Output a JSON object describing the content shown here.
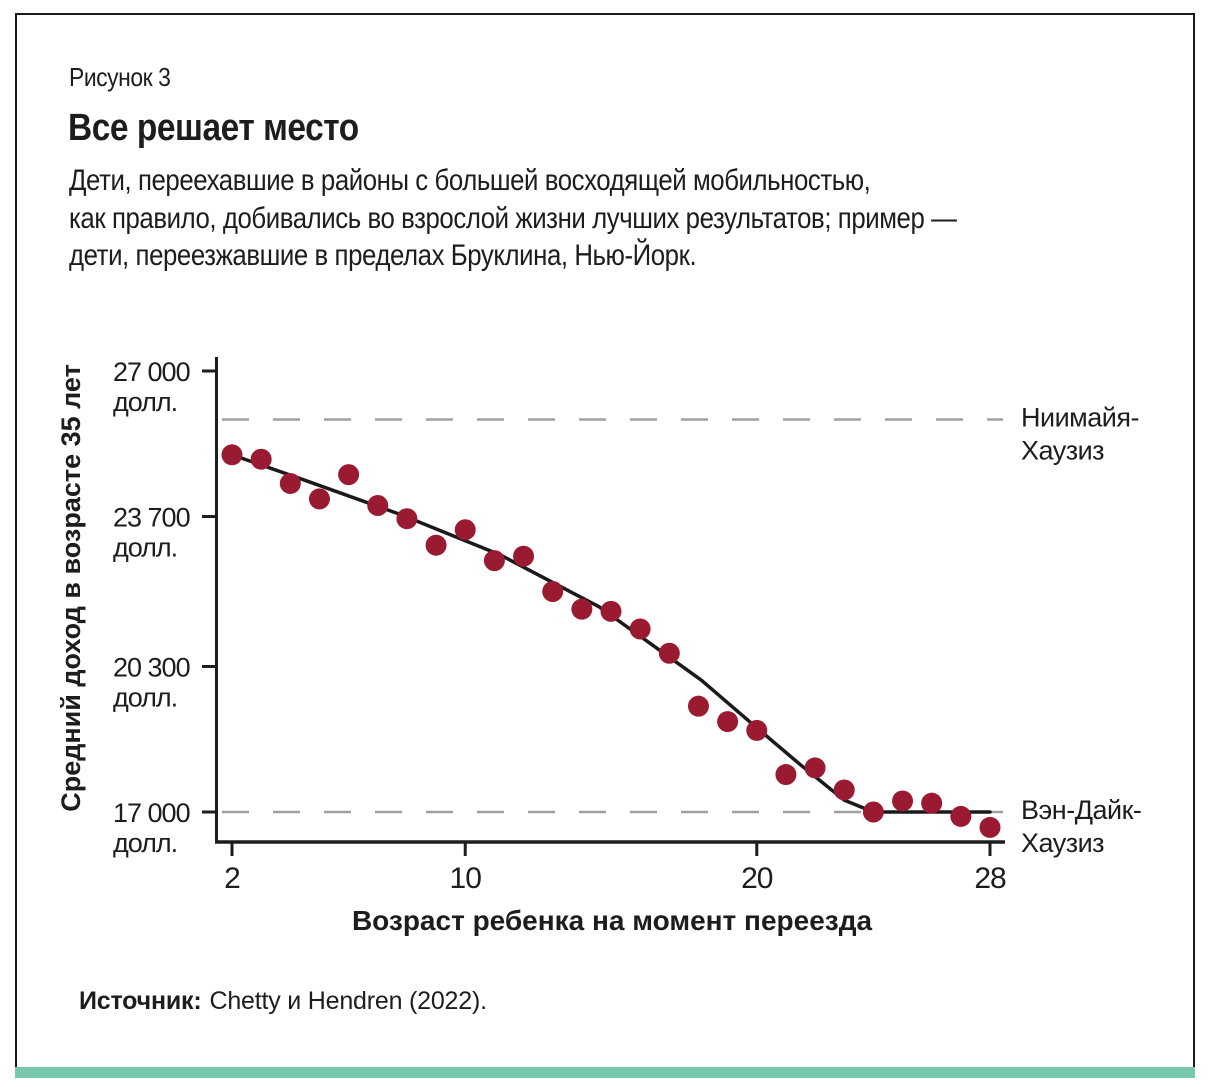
{
  "figure_label": "Рисунок 3",
  "title": "Все решает место",
  "subtitle": "Дети, переехавшие в районы с большей восходящей мобильностью,\nкак правило, добивались во взрослой жизни лучших результатов; пример —\nдети, переезжавшие в пределах Бруклина, Нью-Йорк.",
  "source": {
    "label": "Источник:",
    "text": "Chetty и Hendren (2022)."
  },
  "colors": {
    "dot": "#9a1b31",
    "trend_line": "#1a1a1a",
    "axis": "#1d1d1b",
    "dashed_line": "#a0a0a0",
    "reference_label": "#8d8d8d",
    "accent_bar": "#77c8ac",
    "text": "#1d1d1b"
  },
  "chart_data": {
    "type": "scatter",
    "title": "",
    "xlabel": "Возраст ребенка на момент переезда",
    "ylabel": "Средний доход в возрасте 35 лет",
    "xlim": [
      2,
      28
    ],
    "ylim": [
      16300,
      27300
    ],
    "grid": false,
    "legend": false,
    "x_ticks": [
      {
        "value": 2,
        "label": "2"
      },
      {
        "value": 10,
        "label": "10"
      },
      {
        "value": 20,
        "label": "20"
      },
      {
        "value": 28,
        "label": "28"
      }
    ],
    "y_ticks": [
      {
        "value": 27000,
        "label": [
          "27 000",
          "долл."
        ]
      },
      {
        "value": 23700,
        "label": [
          "23 700",
          "долл."
        ]
      },
      {
        "value": 20300,
        "label": [
          "20 300",
          "долл."
        ]
      },
      {
        "value": 17000,
        "label": [
          "17 000",
          "долл."
        ]
      }
    ],
    "reference_lines": [
      {
        "value": 25900,
        "label": [
          "Ниимайя-",
          "Хаузиз"
        ]
      },
      {
        "value": 17000,
        "label": [
          "Вэн-Дайк-",
          "Хаузиз"
        ]
      }
    ],
    "points": [
      [
        2,
        25100
      ],
      [
        3,
        25000
      ],
      [
        4,
        24450
      ],
      [
        5,
        24100
      ],
      [
        6,
        24650
      ],
      [
        7,
        23950
      ],
      [
        8,
        23650
      ],
      [
        9,
        23050
      ],
      [
        10,
        23400
      ],
      [
        11,
        22700
      ],
      [
        12,
        22800
      ],
      [
        13,
        22000
      ],
      [
        14,
        21600
      ],
      [
        15,
        21550
      ],
      [
        16,
        21150
      ],
      [
        17,
        20600
      ],
      [
        18,
        19400
      ],
      [
        19,
        19050
      ],
      [
        20,
        18850
      ],
      [
        21,
        17850
      ],
      [
        22,
        18000
      ],
      [
        23,
        17500
      ],
      [
        24,
        17000
      ],
      [
        25,
        17250
      ],
      [
        26,
        17200
      ],
      [
        27,
        16900
      ],
      [
        28,
        16650
      ]
    ],
    "trend_line": [
      [
        2,
        25100
      ],
      [
        4.3,
        24570
      ],
      [
        7.8,
        23740
      ],
      [
        11.2,
        22830
      ],
      [
        14.6,
        21650
      ],
      [
        18.1,
        19990
      ],
      [
        20,
        18910
      ],
      [
        21.5,
        18070
      ],
      [
        23,
        17270
      ],
      [
        24,
        17000
      ],
      [
        28,
        17000
      ]
    ]
  }
}
